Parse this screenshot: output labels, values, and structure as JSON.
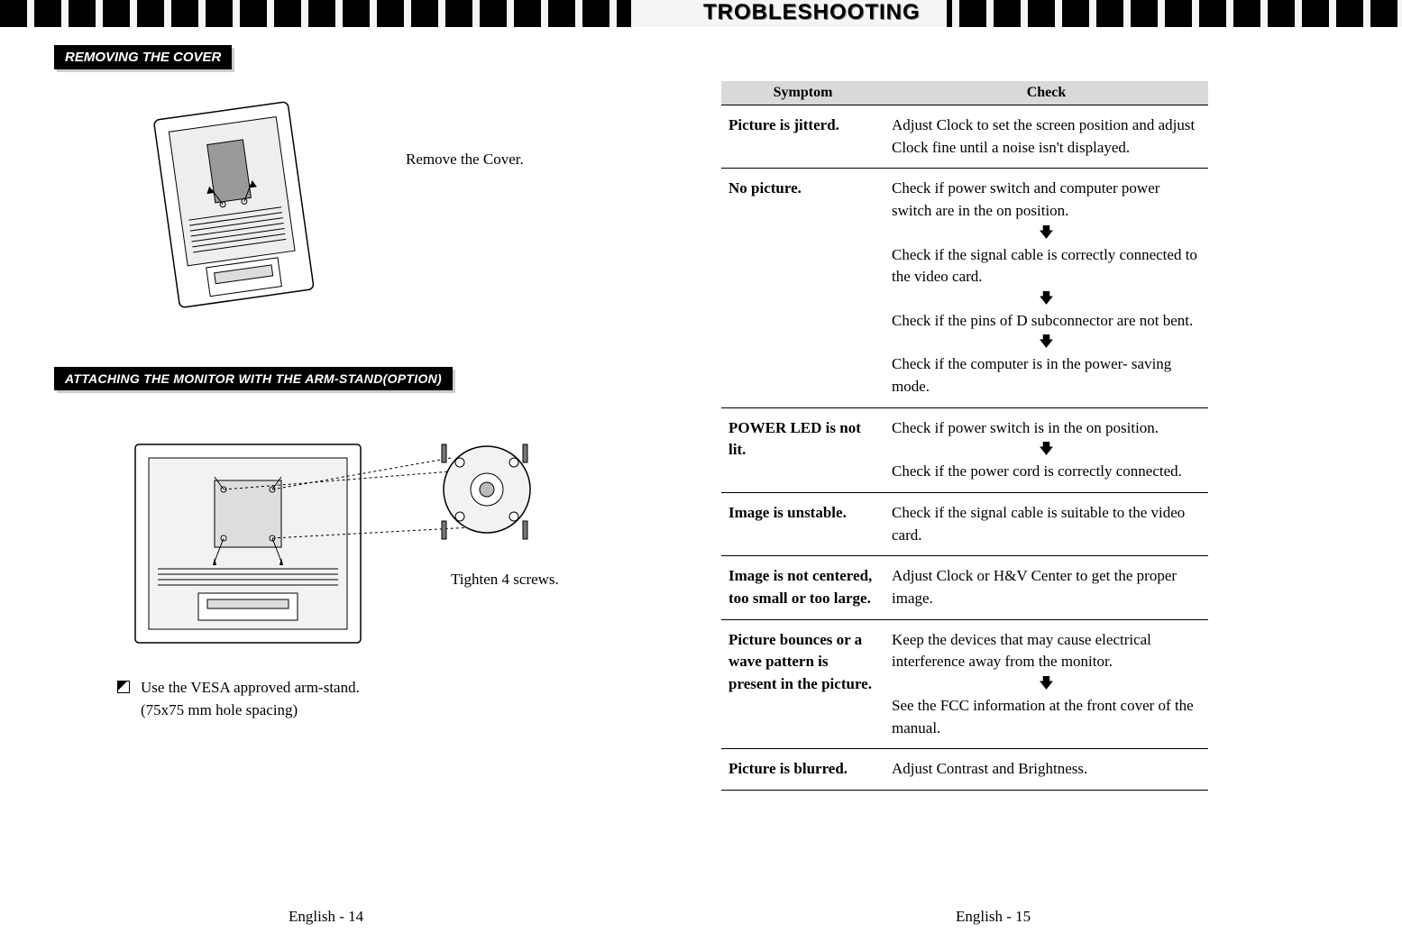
{
  "header": {
    "title": "TROBLESHOOTING"
  },
  "left_page": {
    "section1_title": "REMOVING THE COVER",
    "section1_caption": "Remove the Cover.",
    "section2_title": "ATTACHING THE MONITOR WITH THE ARM-STAND(OPTION)",
    "section2_caption": "Tighten 4 screws.",
    "bullet_line1": "Use the VESA approved arm-stand.",
    "bullet_line2": "(75x75 mm hole spacing)",
    "page_num": "English - 14"
  },
  "right_page": {
    "col_symptom": "Symptom",
    "col_check": "Check",
    "rows": [
      {
        "symptom": "Picture is jitterd.",
        "checks": [
          "Adjust Clock to set the screen position and adjust Clock fine until a noise isn't displayed."
        ]
      },
      {
        "symptom": "No picture.",
        "checks": [
          "Check if power switch and computer power switch are in the on position.",
          "Check if the signal cable is correctly connected to the video card.",
          "Check if the pins of D subconnector are not bent.",
          "Check if the computer is in the power- saving mode."
        ]
      },
      {
        "symptom": "POWER LED is not lit.",
        "checks": [
          "Check if power switch is in the on position.",
          "Check if the power cord is correctly connected."
        ]
      },
      {
        "symptom": "Image is unstable.",
        "checks": [
          "Check if the signal cable is suitable to the video card."
        ]
      },
      {
        "symptom": "Image is not centered, too small or too large.",
        "checks": [
          "Adjust Clock or H&V Center to get the proper image."
        ]
      },
      {
        "symptom": "Picture bounces or a wave pattern is present in the picture.",
        "checks": [
          "Keep the devices that may cause electrical interference away from the monitor.",
          "See the FCC information at the front cover of the manual."
        ]
      },
      {
        "symptom": "Picture is blurred.",
        "checks": [
          "Adjust Contrast and Brightness."
        ]
      }
    ],
    "page_num": "English - 15"
  }
}
